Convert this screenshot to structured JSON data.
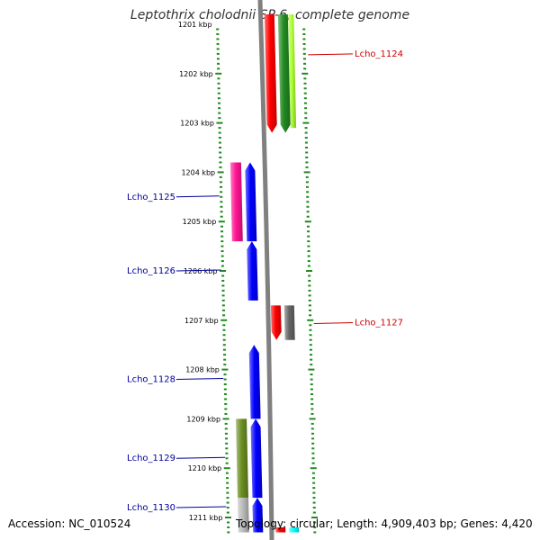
{
  "title": "Leptothrix cholodnii SP-6, complete genome",
  "footer": {
    "accession": "Accession: NC_010524",
    "info": "Topology: circular; Length: 4,909,403 bp; Genes: 4,420"
  },
  "colors": {
    "tick": "#1f8a1f",
    "backbone": "#808080",
    "label_left": "#000099",
    "label_right": "#cc0000"
  },
  "scale": {
    "unit": "kbp",
    "visible_start_kbp": 1200.8,
    "visible_end_kbp": 1211.3,
    "ticks": [
      {
        "kbp": 1201,
        "label": "1201 kbp"
      },
      {
        "kbp": 1202,
        "label": "1202 kbp"
      },
      {
        "kbp": 1203,
        "label": "1203 kbp"
      },
      {
        "kbp": 1204,
        "label": "1204 kbp"
      },
      {
        "kbp": 1205,
        "label": "1205 kbp"
      },
      {
        "kbp": 1206,
        "label": "1206 kbp"
      },
      {
        "kbp": 1207,
        "label": "1207 kbp"
      },
      {
        "kbp": 1208,
        "label": "1208 kbp"
      },
      {
        "kbp": 1209,
        "label": "1209 kbp"
      },
      {
        "kbp": 1210,
        "label": "1210 kbp"
      },
      {
        "kbp": 1211,
        "label": "1211 kbp"
      }
    ]
  },
  "features": [
    {
      "id": "f1",
      "track": "forward-1",
      "color": "#ff0000",
      "start_kbp": 1200.8,
      "end_kbp": 1203.2,
      "strand": "-"
    },
    {
      "id": "f2",
      "track": "forward-2",
      "color": "#228b22",
      "start_kbp": 1200.8,
      "end_kbp": 1203.2,
      "strand": "-"
    },
    {
      "id": "f3",
      "track": "forward-3",
      "color": "#adff2f",
      "start_kbp": 1200.8,
      "end_kbp": 1203.1,
      "strand": "none"
    },
    {
      "id": "f4",
      "track": "reverse-2",
      "color": "#ff1493",
      "start_kbp": 1203.8,
      "end_kbp": 1205.4,
      "strand": "none"
    },
    {
      "id": "f5",
      "track": "reverse-1",
      "color": "#0000ff",
      "start_kbp": 1203.8,
      "end_kbp": 1205.4,
      "strand": "+"
    },
    {
      "id": "f6",
      "track": "reverse-1",
      "color": "#0000ff",
      "start_kbp": 1205.4,
      "end_kbp": 1206.6,
      "strand": "+"
    },
    {
      "id": "f7",
      "track": "forward-1",
      "color": "#ff0000",
      "start_kbp": 1206.7,
      "end_kbp": 1207.4,
      "strand": "-"
    },
    {
      "id": "f8",
      "track": "forward-2",
      "color": "#666666",
      "start_kbp": 1206.7,
      "end_kbp": 1207.4,
      "strand": "none"
    },
    {
      "id": "f9",
      "track": "reverse-1",
      "color": "#0000ff",
      "start_kbp": 1207.5,
      "end_kbp": 1209.0,
      "strand": "+"
    },
    {
      "id": "f10",
      "track": "reverse-2",
      "color": "#6b8e23",
      "start_kbp": 1209.0,
      "end_kbp": 1210.6,
      "strand": "none"
    },
    {
      "id": "f11",
      "track": "reverse-1",
      "color": "#0000ff",
      "start_kbp": 1209.0,
      "end_kbp": 1210.6,
      "strand": "+"
    },
    {
      "id": "f12",
      "track": "reverse-2",
      "color": "#bbbbbb",
      "start_kbp": 1210.6,
      "end_kbp": 1211.3,
      "strand": "none"
    },
    {
      "id": "f13",
      "track": "reverse-1",
      "color": "#0000ff",
      "start_kbp": 1210.6,
      "end_kbp": 1211.3,
      "strand": "+"
    },
    {
      "id": "f14",
      "track": "forward-1",
      "color": "#ff0000",
      "start_kbp": 1211.2,
      "end_kbp": 1211.3,
      "strand": "none"
    },
    {
      "id": "f15",
      "track": "forward-2",
      "color": "#00ffff",
      "start_kbp": 1211.2,
      "end_kbp": 1211.3,
      "strand": "none"
    }
  ],
  "gene_labels": [
    {
      "text": "Lcho_1124",
      "side": "right",
      "kbp": 1201.6
    },
    {
      "text": "Lcho_1125",
      "side": "left",
      "kbp": 1204.5
    },
    {
      "text": "Lcho_1126",
      "side": "left",
      "kbp": 1206.0
    },
    {
      "text": "Lcho_1127",
      "side": "right",
      "kbp": 1207.05
    },
    {
      "text": "Lcho_1128",
      "side": "left",
      "kbp": 1208.2
    },
    {
      "text": "Lcho_1129",
      "side": "left",
      "kbp": 1209.8
    },
    {
      "text": "Lcho_1130",
      "side": "left",
      "kbp": 1210.8
    }
  ]
}
